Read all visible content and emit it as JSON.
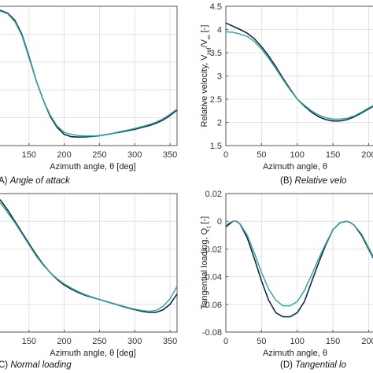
{
  "colors": {
    "model": "#0f2a3f",
    "reference": "#3aa6a1",
    "grid": "#dcdcdc",
    "frame": "#555555"
  },
  "chart_data": [
    {
      "type": "line",
      "panel": "A",
      "caption_letter": "A)",
      "caption_text": "Angle of attack",
      "xlabel": "Azimuth angle, θ [deg]",
      "ylabel": "",
      "xlim": [
        100,
        360
      ],
      "ylim": [
        0,
        1
      ],
      "xticks": [
        150,
        200,
        250,
        300,
        350
      ],
      "yticks": [],
      "grid": true,
      "series": [
        {
          "x": [
            100,
            110,
            120,
            130,
            140,
            150,
            160,
            170,
            180,
            190,
            200,
            210,
            220,
            230,
            240,
            250,
            260,
            270,
            280,
            290,
            300,
            310,
            320,
            330,
            340,
            350,
            360
          ],
          "y": [
            0.975,
            0.97,
            0.95,
            0.9,
            0.8,
            0.64,
            0.47,
            0.33,
            0.21,
            0.13,
            0.08,
            0.064,
            0.061,
            0.062,
            0.066,
            0.071,
            0.079,
            0.088,
            0.097,
            0.107,
            0.117,
            0.13,
            0.143,
            0.16,
            0.183,
            0.215,
            0.255
          ]
        },
        {
          "x": [
            100,
            110,
            120,
            130,
            140,
            150,
            160,
            170,
            180,
            190,
            200,
            210,
            220,
            230,
            240,
            250,
            260,
            270,
            280,
            290,
            300,
            310,
            320,
            330,
            340,
            350,
            360
          ],
          "y": [
            0.97,
            0.965,
            0.945,
            0.89,
            0.79,
            0.63,
            0.47,
            0.33,
            0.22,
            0.14,
            0.095,
            0.08,
            0.072,
            0.069,
            0.069,
            0.072,
            0.08,
            0.09,
            0.101,
            0.112,
            0.123,
            0.136,
            0.15,
            0.168,
            0.192,
            0.225,
            0.262
          ]
        }
      ]
    },
    {
      "type": "line",
      "panel": "B",
      "caption_letter": "(B)",
      "caption_text": "Relative velo",
      "xlabel": "Azimuth angle, θ",
      "ylabel": "Relative velocity, V",
      "ylabel_sub1": "rel",
      "ylabel_mid": "/V",
      "ylabel_sub2": "∞",
      "ylabel_end": " [-]",
      "xlim": [
        0,
        215
      ],
      "ylim": [
        1.5,
        4.5
      ],
      "xticks": [
        0,
        50,
        100,
        150,
        200
      ],
      "xtick_labels": [
        "0",
        "50",
        "100",
        "150",
        "200"
      ],
      "yticks": [
        1.5,
        2,
        2.5,
        3,
        3.5,
        4,
        4.5
      ],
      "ytick_labels": [
        "1.5",
        "2",
        "2.5",
        "3",
        "3.5",
        "4",
        "4.5"
      ],
      "grid": true,
      "series": [
        {
          "x": [
            0,
            10,
            20,
            30,
            40,
            50,
            60,
            70,
            80,
            90,
            100,
            110,
            120,
            130,
            140,
            150,
            160,
            170,
            180,
            190,
            200,
            210,
            215
          ],
          "y": [
            4.14,
            4.07,
            4.0,
            3.92,
            3.8,
            3.63,
            3.43,
            3.2,
            2.95,
            2.72,
            2.5,
            2.35,
            2.22,
            2.12,
            2.06,
            2.03,
            2.03,
            2.06,
            2.12,
            2.2,
            2.29,
            2.38,
            2.41
          ]
        },
        {
          "x": [
            0,
            10,
            20,
            30,
            40,
            50,
            60,
            70,
            80,
            90,
            100,
            110,
            120,
            130,
            140,
            150,
            160,
            170,
            180,
            190,
            200,
            210,
            215
          ],
          "y": [
            3.95,
            3.94,
            3.9,
            3.85,
            3.74,
            3.58,
            3.38,
            3.16,
            2.92,
            2.7,
            2.5,
            2.37,
            2.25,
            2.16,
            2.1,
            2.07,
            2.07,
            2.09,
            2.14,
            2.22,
            2.31,
            2.39,
            2.42
          ]
        }
      ]
    },
    {
      "type": "line",
      "panel": "C",
      "caption_letter": "C)",
      "caption_text": "Normal loading",
      "xlabel": "Azimuth angle, θ [deg]",
      "ylabel": "",
      "xlim": [
        100,
        360
      ],
      "ylim": [
        0,
        1
      ],
      "xticks": [
        150,
        200,
        250,
        300,
        350
      ],
      "yticks": [],
      "grid": true,
      "series": [
        {
          "x": [
            100,
            110,
            120,
            130,
            140,
            150,
            160,
            170,
            180,
            190,
            200,
            210,
            220,
            230,
            240,
            250,
            260,
            270,
            280,
            290,
            300,
            310,
            320,
            330,
            340,
            350,
            360
          ],
          "y": [
            0.99,
            0.95,
            0.88,
            0.8,
            0.72,
            0.64,
            0.56,
            0.49,
            0.43,
            0.38,
            0.34,
            0.31,
            0.285,
            0.265,
            0.25,
            0.235,
            0.22,
            0.205,
            0.19,
            0.175,
            0.162,
            0.15,
            0.142,
            0.142,
            0.16,
            0.2,
            0.275
          ]
        },
        {
          "x": [
            100,
            110,
            120,
            130,
            140,
            150,
            160,
            170,
            180,
            190,
            200,
            210,
            220,
            230,
            240,
            250,
            260,
            270,
            280,
            290,
            300,
            310,
            320,
            330,
            340,
            350,
            360
          ],
          "y": [
            0.97,
            0.93,
            0.86,
            0.79,
            0.71,
            0.63,
            0.55,
            0.485,
            0.43,
            0.385,
            0.348,
            0.318,
            0.292,
            0.27,
            0.252,
            0.236,
            0.221,
            0.206,
            0.192,
            0.178,
            0.166,
            0.156,
            0.15,
            0.156,
            0.185,
            0.24,
            0.33
          ]
        }
      ]
    },
    {
      "type": "line",
      "panel": "D",
      "caption_letter": "(D)",
      "caption_text": "Tangential lo",
      "xlabel": "Azimuth angle, θ",
      "ylabel": "Tangential loading, Q",
      "ylabel_sub1": "t",
      "ylabel_end": " [-]",
      "xlim": [
        0,
        215
      ],
      "ylim": [
        -0.08,
        0.02
      ],
      "xticks": [
        0,
        50,
        100,
        150,
        200
      ],
      "xtick_labels": [
        "0",
        "50",
        "100",
        "150",
        "200"
      ],
      "yticks": [
        -0.08,
        -0.06,
        -0.04,
        -0.02,
        0,
        0.02
      ],
      "ytick_labels": [
        "-0.08",
        "-0.06",
        "-0.04",
        "-0.02",
        "0",
        "0.02"
      ],
      "grid": true,
      "series": [
        {
          "x": [
            0,
            5,
            10,
            15,
            20,
            30,
            40,
            50,
            60,
            70,
            80,
            90,
            100,
            110,
            120,
            130,
            140,
            150,
            160,
            170,
            175,
            180,
            190,
            200,
            210,
            215
          ],
          "y": [
            -0.004,
            -0.002,
            0.0,
            0.0,
            -0.002,
            -0.012,
            -0.027,
            -0.043,
            -0.057,
            -0.066,
            -0.069,
            -0.069,
            -0.066,
            -0.058,
            -0.044,
            -0.03,
            -0.017,
            -0.006,
            -0.001,
            0.0,
            -0.001,
            -0.003,
            -0.01,
            -0.02,
            -0.03,
            -0.034
          ]
        },
        {
          "x": [
            0,
            5,
            10,
            15,
            20,
            30,
            40,
            50,
            60,
            70,
            80,
            90,
            100,
            110,
            120,
            130,
            140,
            150,
            160,
            170,
            175,
            180,
            190,
            200,
            210,
            215
          ],
          "y": [
            -0.003,
            -0.001,
            0.0,
            0.0,
            -0.002,
            -0.01,
            -0.023,
            -0.037,
            -0.049,
            -0.057,
            -0.061,
            -0.061,
            -0.058,
            -0.05,
            -0.039,
            -0.027,
            -0.016,
            -0.006,
            -0.001,
            0.0,
            -0.001,
            -0.003,
            -0.009,
            -0.019,
            -0.029,
            -0.033
          ]
        }
      ]
    }
  ]
}
